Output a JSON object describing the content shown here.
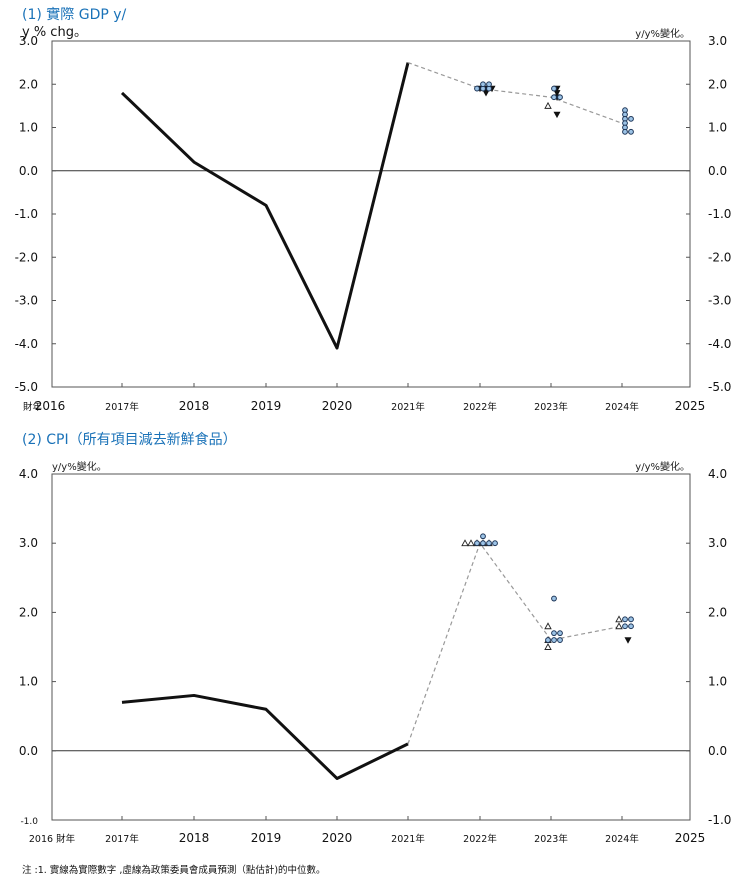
{
  "chart_data": [
    {
      "type": "line",
      "title": "(1) 實際 GDP y/",
      "title_line2": "y % chg。",
      "unit_right": "y/y%變化。",
      "ylim": [
        -5.0,
        3.0
      ],
      "y_ticks": [
        "3.0",
        "2.0",
        "1.0",
        "0.0",
        "-1.0",
        "-2.0",
        "-3.0",
        "-4.0",
        "-5.0"
      ],
      "y_tick_values": [
        3,
        2,
        1,
        0,
        -1,
        -2,
        -3,
        -4,
        -5
      ],
      "x_tick_labels": [
        "財年",
        "2016",
        "2017年",
        "2018",
        "2019",
        "2020",
        "2021年",
        "2022年",
        "2023年",
        "2024年",
        "2025"
      ],
      "series": [
        {
          "name": "actual",
          "style": "solid",
          "x": [
            2017,
            2018,
            2019,
            2020,
            2021
          ],
          "values": [
            1.8,
            0.2,
            -0.8,
            -4.1,
            2.5
          ]
        },
        {
          "name": "median_forecast",
          "style": "dashed",
          "x": [
            2021,
            2022,
            2023,
            2024
          ],
          "values": [
            2.5,
            1.9,
            1.7,
            1.1
          ]
        }
      ],
      "dot_plot": [
        {
          "year": 2022,
          "circles": [
            1.9,
            1.9,
            2.0,
            1.9,
            2.0
          ],
          "down_triangles": [
            1.8,
            1.9,
            1.9,
            1.9
          ]
        },
        {
          "year": 2023,
          "circles": [
            1.9,
            1.7,
            1.7
          ],
          "up_triangles": [
            1.5
          ],
          "down_triangles": [
            1.9,
            1.8,
            1.7,
            1.3
          ]
        },
        {
          "year": 2024,
          "circles": [
            1.4,
            1.3,
            1.2,
            1.2,
            1.1,
            1.0,
            0.9,
            0.9
          ],
          "down_triangles": []
        }
      ]
    },
    {
      "type": "line",
      "title": "(2) CPI（所有項目減去新鮮食品）",
      "unit_left": "y/y%變化。",
      "unit_right": "y/y%變化。",
      "ylim": [
        -1.0,
        4.0
      ],
      "y_ticks": [
        "4.0",
        "3.0",
        "2.0",
        "1.0",
        "0.0",
        "-1.0"
      ],
      "y_tick_values": [
        4,
        3,
        2,
        1,
        0,
        -1
      ],
      "x_tick_labels": [
        "2016 財年",
        "2017年",
        "2018",
        "2019",
        "2020",
        "2021年",
        "2022年",
        "2023年",
        "2024年",
        "2025"
      ],
      "series": [
        {
          "name": "actual",
          "style": "solid",
          "x": [
            2017,
            2018,
            2019,
            2020,
            2021
          ],
          "values": [
            0.7,
            0.8,
            0.6,
            -0.4,
            0.1
          ]
        },
        {
          "name": "median_forecast",
          "style": "dashed",
          "x": [
            2021,
            2022,
            2023,
            2024
          ],
          "values": [
            0.1,
            3.0,
            1.6,
            1.8
          ]
        }
      ],
      "dot_plot": [
        {
          "year": 2022,
          "up_triangles": [
            3.0,
            3.0,
            3.0,
            3.0,
            3.0
          ],
          "circles": [
            3.1,
            3.0,
            3.0,
            3.0,
            3.0
          ]
        },
        {
          "year": 2023,
          "circles": [
            2.2,
            1.7,
            1.7,
            1.6,
            1.6,
            1.6
          ],
          "up_triangles": [
            1.8,
            1.6,
            1.5
          ],
          "down_triangles": []
        },
        {
          "year": 2024,
          "up_triangles": [
            1.9,
            1.8
          ],
          "circles": [
            1.9,
            1.9,
            1.8,
            1.8
          ],
          "down_triangles": [
            1.6
          ]
        }
      ]
    }
  ],
  "note": "注 :1. 實線為實際數字 ,虛線為政策委員會成員預測（點估計)的中位數。"
}
